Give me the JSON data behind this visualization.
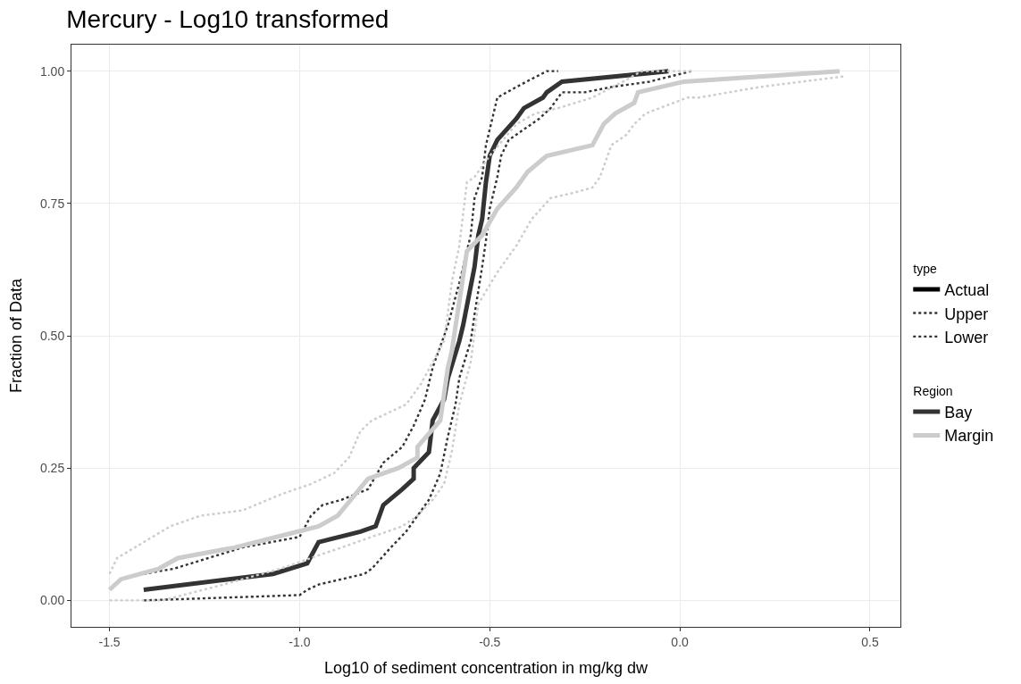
{
  "chart_data": {
    "type": "line",
    "title": "Mercury - Log10 transformed",
    "xlabel": "Log10 of sediment concentration in mg/kg dw",
    "ylabel": "Fraction of Data",
    "legend_title": [
      "type",
      "Region"
    ],
    "annotations": [
      "Actual"
    ],
    "xlim": [
      -1.6,
      0.58
    ],
    "xticks": [
      -1.5,
      {
        "value": -1,
        "label": "-1.0"
      },
      -0.5,
      {
        "value": 0,
        "label": "0.0"
      },
      0.5
    ],
    "ylim": [
      -0.05,
      1.05
    ],
    "yticks": [
      {
        "value": 0,
        "label": "0.00"
      },
      {
        "value": 0.25,
        "label": "0.25"
      },
      {
        "value": 0.5,
        "label": "0.50"
      },
      {
        "value": 0.75,
        "label": "0.75"
      },
      {
        "value": 1,
        "label": "1.00"
      }
    ],
    "grid": true,
    "legend": "right",
    "marker": "none",
    "series": [
      {
        "name": "Bay",
        "color": "#333333",
        "line_style": "solid",
        "x": [
          -1.41,
          -1.07,
          -0.98,
          -0.95,
          -0.84,
          -0.8,
          -0.78,
          -0.73,
          -0.7,
          -0.7,
          -0.66,
          -0.65,
          -0.62,
          -0.61,
          -0.58,
          -0.57,
          -0.54,
          -0.53,
          -0.52,
          -0.51,
          -0.5,
          -0.48,
          -0.43,
          -0.41,
          -0.36,
          -0.35,
          -0.31,
          -0.03
        ],
        "values": [
          0.02,
          0.05,
          0.07,
          0.11,
          0.13,
          0.14,
          0.18,
          0.21,
          0.23,
          0.25,
          0.28,
          0.34,
          0.38,
          0.42,
          0.49,
          0.52,
          0.63,
          0.69,
          0.72,
          0.79,
          0.84,
          0.87,
          0.91,
          0.93,
          0.95,
          0.96,
          0.98,
          1.0
        ]
      },
      {
        "name": "Upper",
        "color": "#333333",
        "line_style": "dotted",
        "x": [
          -1.41,
          -1.33,
          -1.15,
          -1.0,
          -0.97,
          -0.94,
          -0.89,
          -0.82,
          -0.78,
          -0.73,
          -0.7,
          -0.67,
          -0.65,
          -0.61,
          -0.58,
          -0.55,
          -0.54,
          -0.52,
          -0.51,
          -0.49,
          -0.48,
          -0.43,
          -0.35,
          -0.32
        ],
        "values": [
          0.05,
          0.06,
          0.1,
          0.12,
          0.16,
          0.18,
          0.19,
          0.21,
          0.26,
          0.29,
          0.33,
          0.38,
          0.44,
          0.52,
          0.6,
          0.69,
          0.76,
          0.8,
          0.86,
          0.92,
          0.95,
          0.97,
          1.0,
          1.0
        ]
      },
      {
        "name": "Lower",
        "color": "#333333",
        "line_style": "dotted",
        "x": [
          -1.41,
          -1.0,
          -0.98,
          -0.95,
          -0.83,
          -0.81,
          -0.76,
          -0.72,
          -0.69,
          -0.66,
          -0.63,
          -0.61,
          -0.59,
          -0.58,
          -0.55,
          -0.54,
          -0.52,
          -0.51,
          -0.5,
          -0.48,
          -0.47,
          -0.45,
          -0.41,
          -0.37,
          -0.34,
          -0.31,
          -0.25,
          -0.18,
          -0.08,
          0.03
        ],
        "values": [
          0.0,
          0.01,
          0.02,
          0.03,
          0.05,
          0.06,
          0.1,
          0.13,
          0.16,
          0.19,
          0.24,
          0.31,
          0.37,
          0.42,
          0.49,
          0.54,
          0.63,
          0.68,
          0.74,
          0.8,
          0.84,
          0.87,
          0.89,
          0.91,
          0.93,
          0.96,
          0.96,
          0.97,
          0.98,
          1.0
        ]
      },
      {
        "name": "Margin",
        "color": "#cccccc",
        "line_style": "solid",
        "x": [
          -1.5,
          -1.47,
          -1.37,
          -1.32,
          -1.17,
          -1.06,
          -0.95,
          -0.9,
          -0.82,
          -0.74,
          -0.69,
          -0.69,
          -0.63,
          -0.61,
          -0.6,
          -0.56,
          -0.52,
          -0.48,
          -0.43,
          -0.4,
          -0.35,
          -0.23,
          -0.2,
          -0.17,
          -0.12,
          -0.11,
          0.01,
          0.42
        ],
        "values": [
          0.02,
          0.04,
          0.06,
          0.08,
          0.1,
          0.12,
          0.14,
          0.16,
          0.23,
          0.25,
          0.27,
          0.29,
          0.34,
          0.44,
          0.47,
          0.66,
          0.69,
          0.74,
          0.78,
          0.81,
          0.84,
          0.86,
          0.9,
          0.92,
          0.94,
          0.96,
          0.98,
          1.0
        ]
      },
      {
        "color": "#cccccc",
        "line_style": "dotted",
        "x": [
          -1.5,
          -1.48,
          -1.41,
          -1.34,
          -1.26,
          -1.15,
          -1.05,
          -0.97,
          -0.91,
          -0.87,
          -0.84,
          -0.81,
          -0.72,
          -0.68,
          -0.65,
          -0.62,
          -0.6,
          -0.58,
          -0.56,
          -0.54,
          -0.5,
          -0.43,
          -0.38,
          -0.32,
          -0.23,
          -0.15,
          -0.1,
          0.03
        ],
        "values": [
          0.05,
          0.08,
          0.11,
          0.14,
          0.16,
          0.17,
          0.2,
          0.22,
          0.24,
          0.27,
          0.32,
          0.34,
          0.37,
          0.41,
          0.45,
          0.49,
          0.6,
          0.67,
          0.79,
          0.8,
          0.84,
          0.9,
          0.92,
          0.93,
          0.95,
          0.98,
          1.0,
          1.0
        ]
      },
      {
        "color": "#cccccc",
        "line_style": "dotted",
        "x": [
          -1.5,
          -1.36,
          -1.2,
          -1.05,
          -0.97,
          -0.89,
          -0.81,
          -0.73,
          -0.69,
          -0.65,
          -0.62,
          -0.6,
          -0.58,
          -0.55,
          -0.53,
          -0.48,
          -0.43,
          -0.39,
          -0.34,
          -0.28,
          -0.23,
          -0.21,
          -0.18,
          -0.14,
          -0.12,
          -0.09,
          0.02,
          0.05,
          0.21,
          0.43
        ],
        "values": [
          0.0,
          0.0,
          0.03,
          0.06,
          0.08,
          0.1,
          0.12,
          0.14,
          0.16,
          0.19,
          0.22,
          0.28,
          0.37,
          0.45,
          0.56,
          0.62,
          0.67,
          0.72,
          0.76,
          0.77,
          0.78,
          0.8,
          0.86,
          0.88,
          0.9,
          0.92,
          0.95,
          0.95,
          0.97,
          0.99
        ]
      }
    ]
  }
}
